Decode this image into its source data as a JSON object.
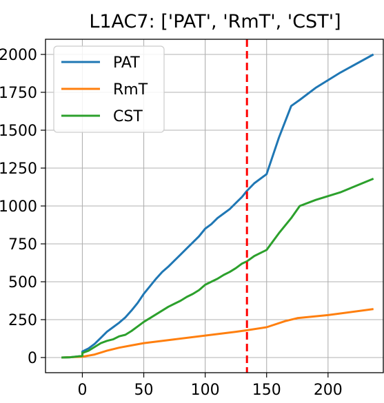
{
  "chart_data": {
    "type": "line",
    "title": "L1AC7: ['PAT', 'RmT', 'CST']",
    "xlabel": "",
    "ylabel": "",
    "xlim": [
      -30,
      245
    ],
    "ylim": [
      -100,
      2100
    ],
    "x_ticks": [
      0,
      50,
      100,
      150,
      200
    ],
    "x_tick_labels": [
      "0",
      "50",
      "100",
      "150",
      "200"
    ],
    "y_ticks": [
      0,
      250,
      500,
      750,
      1000,
      1250,
      1500,
      1750,
      2000
    ],
    "y_tick_labels": [
      "0",
      "250",
      "500",
      "750",
      "1000",
      "1250",
      "1500",
      "1750",
      "2000"
    ],
    "grid": true,
    "legend_position": "top-left",
    "vline": {
      "x": 134,
      "color": "#ff0000",
      "style": "dashed"
    },
    "series": [
      {
        "name": "PAT",
        "color": "#1f77b4",
        "points": [
          [
            -17,
            0
          ],
          [
            -10,
            2
          ],
          [
            0,
            10
          ],
          [
            0,
            40
          ],
          [
            5,
            60
          ],
          [
            10,
            90
          ],
          [
            15,
            130
          ],
          [
            20,
            170
          ],
          [
            25,
            200
          ],
          [
            30,
            230
          ],
          [
            35,
            265
          ],
          [
            40,
            310
          ],
          [
            45,
            360
          ],
          [
            50,
            420
          ],
          [
            55,
            470
          ],
          [
            60,
            520
          ],
          [
            65,
            565
          ],
          [
            70,
            600
          ],
          [
            75,
            640
          ],
          [
            80,
            680
          ],
          [
            85,
            720
          ],
          [
            90,
            760
          ],
          [
            95,
            800
          ],
          [
            100,
            850
          ],
          [
            105,
            880
          ],
          [
            110,
            920
          ],
          [
            115,
            950
          ],
          [
            120,
            980
          ],
          [
            125,
            1020
          ],
          [
            130,
            1060
          ],
          [
            134,
            1100
          ],
          [
            140,
            1150
          ],
          [
            150,
            1210
          ],
          [
            160,
            1450
          ],
          [
            170,
            1660
          ],
          [
            177,
            1700
          ],
          [
            190,
            1780
          ],
          [
            210,
            1880
          ],
          [
            237,
            2000
          ]
        ]
      },
      {
        "name": "RmT",
        "color": "#ff7f0e",
        "points": [
          [
            -17,
            0
          ],
          [
            0,
            5
          ],
          [
            10,
            20
          ],
          [
            20,
            45
          ],
          [
            30,
            65
          ],
          [
            40,
            80
          ],
          [
            50,
            95
          ],
          [
            75,
            120
          ],
          [
            100,
            145
          ],
          [
            125,
            170
          ],
          [
            134,
            180
          ],
          [
            150,
            200
          ],
          [
            165,
            240
          ],
          [
            175,
            260
          ],
          [
            200,
            280
          ],
          [
            237,
            320
          ]
        ]
      },
      {
        "name": "CST",
        "color": "#2ca02c",
        "points": [
          [
            -17,
            0
          ],
          [
            -10,
            2
          ],
          [
            0,
            10
          ],
          [
            0,
            30
          ],
          [
            5,
            45
          ],
          [
            10,
            70
          ],
          [
            15,
            95
          ],
          [
            20,
            110
          ],
          [
            25,
            120
          ],
          [
            30,
            140
          ],
          [
            35,
            150
          ],
          [
            40,
            175
          ],
          [
            45,
            205
          ],
          [
            50,
            235
          ],
          [
            55,
            260
          ],
          [
            60,
            285
          ],
          [
            65,
            310
          ],
          [
            70,
            335
          ],
          [
            75,
            355
          ],
          [
            80,
            375
          ],
          [
            85,
            400
          ],
          [
            90,
            420
          ],
          [
            95,
            445
          ],
          [
            100,
            480
          ],
          [
            105,
            500
          ],
          [
            110,
            520
          ],
          [
            115,
            545
          ],
          [
            120,
            565
          ],
          [
            125,
            590
          ],
          [
            130,
            620
          ],
          [
            134,
            635
          ],
          [
            140,
            670
          ],
          [
            150,
            710
          ],
          [
            160,
            820
          ],
          [
            170,
            920
          ],
          [
            177,
            1000
          ],
          [
            190,
            1040
          ],
          [
            210,
            1090
          ],
          [
            237,
            1180
          ]
        ]
      }
    ]
  }
}
